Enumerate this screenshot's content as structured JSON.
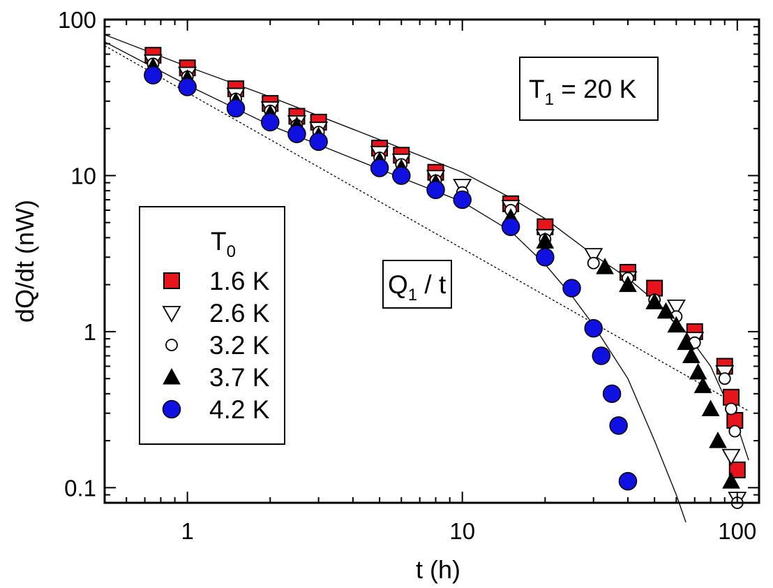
{
  "chart_data": {
    "type": "scatter",
    "xscale": "log",
    "yscale": "log",
    "xlim": [
      0.5,
      120
    ],
    "ylim": [
      0.08,
      100
    ],
    "xlabel": "t  (h)",
    "ylabel": "dQ/dt  (nW)",
    "x_ticks": [
      1,
      10,
      100
    ],
    "x_tick_labels": [
      "1",
      "10",
      "100"
    ],
    "y_ticks": [
      0.1,
      1,
      10,
      100
    ],
    "y_tick_labels": [
      "0.1",
      "1",
      "10",
      "100"
    ],
    "legend_title": "T",
    "legend_title_sub": "0",
    "annotation_main": "T",
    "annotation_main_sub": "1",
    "annotation_main_rest": " = 20 K",
    "annotation_curve": "Q",
    "annotation_curve_sub": "1",
    "annotation_curve_rest": " / t",
    "series": [
      {
        "name": "1.6 K",
        "marker": "square",
        "color": "#e8141c",
        "x": [
          0.75,
          1.0,
          1.5,
          2.0,
          2.5,
          3.0,
          5.0,
          6.0,
          8.0,
          15.0,
          20.0,
          40.0,
          50.0,
          70.0,
          90.0,
          95.0,
          98.0,
          100.0
        ],
        "y": [
          59,
          49,
          36,
          29,
          24,
          22,
          15,
          13.5,
          10.5,
          6.6,
          4.7,
          2.4,
          1.9,
          1.0,
          0.6,
          0.38,
          0.27,
          0.13
        ]
      },
      {
        "name": "2.6 K",
        "marker": "triangle-down",
        "color": "#ffffff",
        "x": [
          0.75,
          1.0,
          1.5,
          2.0,
          2.5,
          3.0,
          5.0,
          6.0,
          8.0,
          10.0,
          15.0,
          20.0,
          30.0,
          40.0,
          60.0,
          70.0,
          90.0,
          95.0,
          100.0
        ],
        "y": [
          54,
          45,
          33,
          27,
          22,
          20,
          14,
          12.5,
          9.8,
          8.6,
          6.3,
          4.1,
          3.1,
          2.2,
          1.45,
          0.9,
          0.55,
          0.16,
          0.085
        ]
      },
      {
        "name": "3.2 K",
        "marker": "circle-open",
        "color": "#ffffff",
        "x": [
          0.75,
          1.0,
          1.5,
          2.0,
          2.5,
          3.0,
          5.0,
          6.0,
          8.0,
          10.0,
          15.0,
          20.0,
          30.0,
          40.0,
          50.0,
          60.0,
          70.0,
          90.0,
          95.0,
          98.0,
          100.0
        ],
        "y": [
          52,
          43,
          31,
          26,
          21,
          19,
          13,
          11.8,
          9.3,
          7.8,
          6.0,
          3.9,
          2.75,
          2.2,
          1.6,
          1.25,
          0.85,
          0.5,
          0.32,
          0.23,
          0.08
        ]
      },
      {
        "name": "3.7 K",
        "marker": "triangle-up",
        "color": "#000000",
        "x": [
          0.75,
          1.0,
          1.5,
          2.0,
          2.5,
          3.0,
          5.0,
          6.0,
          8.0,
          15.0,
          20.0,
          33.0,
          40.0,
          50.0,
          55.0,
          60.0,
          65.0,
          68.0,
          72.0,
          75.0,
          80.0,
          85.0,
          95.0
        ],
        "y": [
          50,
          42,
          30,
          25,
          21,
          18,
          12.5,
          11.2,
          9.0,
          5.4,
          3.8,
          2.6,
          2.0,
          1.55,
          1.35,
          1.1,
          0.85,
          0.7,
          0.55,
          0.45,
          0.32,
          0.2,
          0.11
        ]
      },
      {
        "name": "4.2 K",
        "marker": "circle",
        "color": "#1010e0",
        "x": [
          0.75,
          1.0,
          1.5,
          2.0,
          2.5,
          3.0,
          5.0,
          6.0,
          8.0,
          10.0,
          15.0,
          20.0,
          25.0,
          30.0,
          32.0,
          35.0,
          37.0,
          40.0
        ],
        "y": [
          44,
          37,
          27,
          22,
          18.5,
          16.5,
          11.2,
          10,
          8.1,
          7.0,
          4.7,
          3.0,
          1.9,
          1.05,
          0.7,
          0.4,
          0.25,
          0.11
        ]
      }
    ],
    "lines": [
      {
        "name": "fit-upper",
        "style": "solid",
        "x": [
          0.5,
          1,
          2,
          5,
          10,
          15,
          20,
          30,
          40,
          60,
          80,
          100,
          110
        ],
        "y": [
          80,
          50,
          32,
          17,
          10.5,
          7.2,
          5.3,
          3.1,
          2.2,
          1.2,
          0.6,
          0.25,
          0.15
        ]
      },
      {
        "name": "fit-lower",
        "style": "solid",
        "x": [
          0.5,
          1,
          2,
          5,
          10,
          15,
          20,
          25,
          30,
          40,
          50,
          60,
          65
        ],
        "y": [
          72,
          38,
          21,
          11,
          6.8,
          4.4,
          2.7,
          1.7,
          1.1,
          0.5,
          0.2,
          0.09,
          0.06
        ]
      },
      {
        "name": "Q1-over-t",
        "style": "dashed",
        "x": [
          0.5,
          110
        ],
        "y": [
          68,
          0.31
        ]
      }
    ]
  },
  "colors": {
    "red": "#e8141c",
    "blue": "#1010e0",
    "black": "#000000"
  }
}
